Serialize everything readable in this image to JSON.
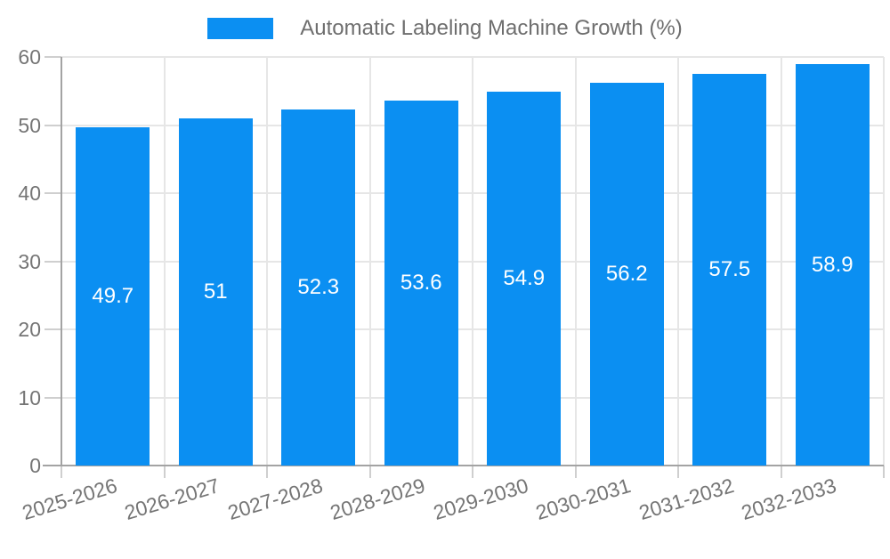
{
  "legend": {
    "label": "Automatic Labeling Machine Growth (%)"
  },
  "chart_data": {
    "type": "bar",
    "title": "Automatic Labeling Machine Growth (%)",
    "categories": [
      "2025-2026",
      "2026-2027",
      "2027-2028",
      "2028-2029",
      "2029-2030",
      "2030-2031",
      "2031-2032",
      "2032-2033"
    ],
    "values": [
      49.7,
      51,
      52.3,
      53.6,
      54.9,
      56.2,
      57.5,
      58.9
    ],
    "series": [
      {
        "name": "Automatic Labeling Machine Growth (%)",
        "values": [
          49.7,
          51,
          52.3,
          53.6,
          54.9,
          56.2,
          57.5,
          58.9
        ]
      }
    ],
    "xlabel": "",
    "ylabel": "",
    "ylim": [
      0,
      60
    ],
    "yticks": [
      0,
      10,
      20,
      30,
      40,
      50,
      60
    ],
    "grid": true,
    "legend_position": "top",
    "x_label_rotation_deg": -17,
    "colors": {
      "bar": "#0b8ff2",
      "value_label": "#ffffff",
      "grid": "#e6e6e6",
      "tick_mark": "#cfcfcf",
      "axis": "#a3a3a3",
      "tick_label": "#757575",
      "legend_text": "#6e6e6e",
      "background": "#ffffff"
    }
  }
}
